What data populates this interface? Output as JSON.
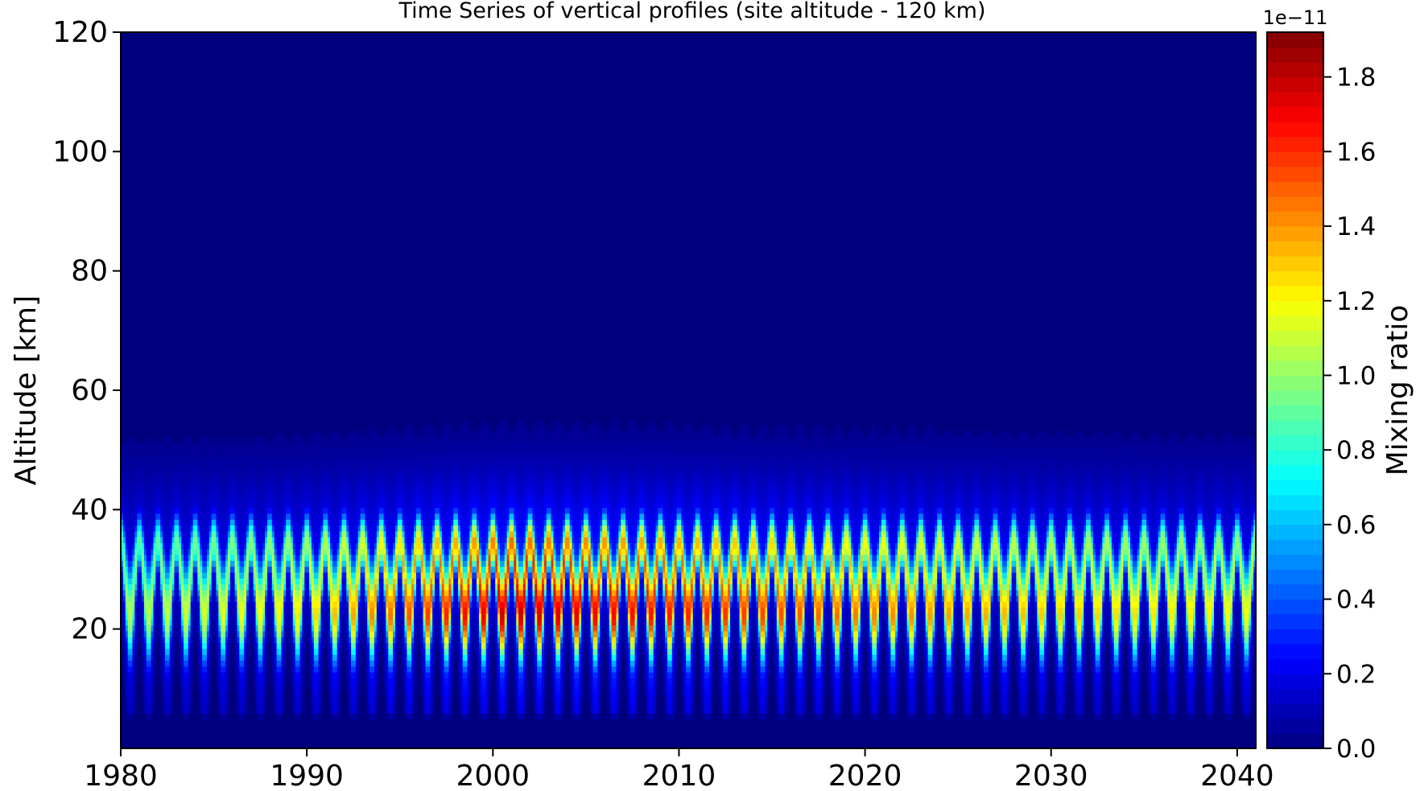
{
  "chart_data": {
    "type": "heatmap",
    "title": "Time Series of vertical profiles (site altitude - 120 km)",
    "xlabel": "",
    "ylabel": "Altitude [km]",
    "xlim": [
      1980,
      2041
    ],
    "ylim": [
      0,
      120
    ],
    "x_ticks": [
      1980,
      1990,
      2000,
      2010,
      2020,
      2030,
      2040
    ],
    "y_ticks": [
      20,
      40,
      60,
      80,
      100,
      120
    ],
    "colormap": "jet",
    "colorbar": {
      "label": "Mixing ratio",
      "offset_text": "1e−11",
      "range": [
        0.0,
        1.92
      ],
      "scale": 1e-11,
      "ticks": [
        0.0,
        0.2,
        0.4,
        0.6,
        0.8,
        1.0,
        1.2,
        1.4,
        1.6,
        1.8
      ],
      "tick_labels": [
        "0.0",
        "0.2",
        "0.4",
        "0.6",
        "0.8",
        "1.0",
        "1.2",
        "1.4",
        "1.6",
        "1.8"
      ]
    },
    "field": {
      "description_units": "mixing ratio x 1e-11",
      "cycles_per_year": 1,
      "peak_altitude_km": [
        22,
        35
      ],
      "nonzero_altitude_range_km": [
        6,
        57
      ],
      "peak_value_by_year": [
        {
          "x": 1980,
          "v": 1.05
        },
        {
          "x": 1990,
          "v": 1.25
        },
        {
          "x": 1996,
          "v": 1.55
        },
        {
          "x": 2001,
          "v": 1.8
        },
        {
          "x": 2006,
          "v": 1.7
        },
        {
          "x": 2012,
          "v": 1.6
        },
        {
          "x": 2020,
          "v": 1.45
        },
        {
          "x": 2030,
          "v": 1.3
        },
        {
          "x": 2041,
          "v": 1.2
        }
      ]
    }
  }
}
